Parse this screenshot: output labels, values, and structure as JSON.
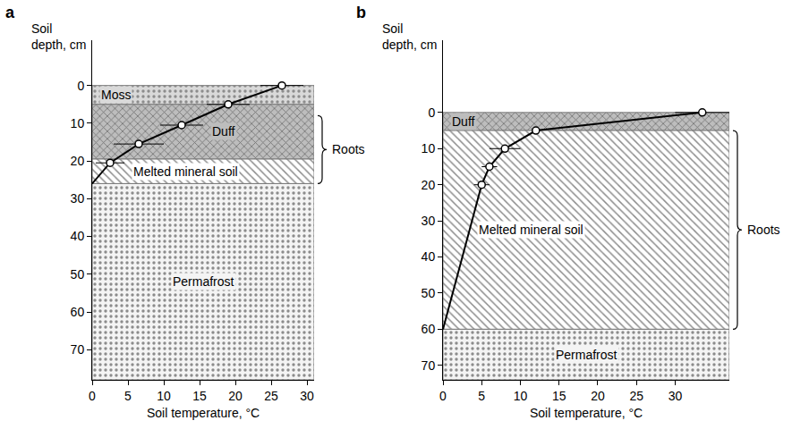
{
  "chart_data": [
    {
      "type": "line",
      "title": "a",
      "x_label": "Soil temperature, °C",
      "y_label": "Soil depth, cm",
      "xlim": [
        0,
        31
      ],
      "xticks": [
        0,
        5,
        10,
        15,
        20,
        25,
        30
      ],
      "ylim": [
        78,
        -12
      ],
      "yticks": [
        0,
        10,
        20,
        30,
        40,
        50,
        60,
        70
      ],
      "grid": false,
      "layers": [
        {
          "label": "Moss",
          "top": 0,
          "bottom": 5,
          "color": "#d9d9d9",
          "marker": "dots"
        },
        {
          "label": "Duff",
          "top": 5,
          "bottom": 19.5,
          "color": "#bdbdbd",
          "marker": "crosshatch"
        },
        {
          "label": "Melted mineral soil",
          "top": 19.5,
          "bottom": 26,
          "color": "#ffffff",
          "marker": "hatch"
        },
        {
          "label": "Permafrost",
          "top": 26,
          "bottom": 78,
          "color": "#f4f4f4",
          "marker": "dots"
        }
      ],
      "series": [
        {
          "type": "line",
          "color": "#000000",
          "x": [
            26.5,
            19,
            12.5,
            6.5,
            2.5,
            0
          ],
          "values": [
            0,
            5,
            10.5,
            15.5,
            20.5,
            26
          ]
        },
        {
          "type": "scatter",
          "marker": "open-circle",
          "color": "#000000",
          "x": [
            26.5,
            19,
            12.5,
            6.5,
            2.5
          ],
          "values": [
            0,
            5,
            10.5,
            15.5,
            20.5
          ],
          "error": [
            3,
            3,
            3,
            3.5,
            2
          ]
        }
      ],
      "brackets": [
        {
          "label": "Roots",
          "top": 8,
          "bottom": 26
        }
      ]
    },
    {
      "type": "line",
      "title": "b",
      "x_label": "Soil temperature, °C",
      "y_label": "Soil depth, cm",
      "xlim": [
        0,
        37
      ],
      "xticks": [
        0,
        5,
        10,
        15,
        20,
        25,
        30
      ],
      "ylim": [
        74,
        -20
      ],
      "yticks": [
        0,
        10,
        20,
        30,
        40,
        50,
        60,
        70
      ],
      "grid": false,
      "layers": [
        {
          "label": "Duff",
          "top": 0,
          "bottom": 5,
          "color": "#bdbdbd",
          "marker": "crosshatch"
        },
        {
          "label": "Melted mineral soil",
          "top": 5,
          "bottom": 60,
          "color": "#ffffff",
          "marker": "hatch"
        },
        {
          "label": "Permafrost",
          "top": 60,
          "bottom": 74,
          "color": "#f4f4f4",
          "marker": "dots"
        }
      ],
      "series": [
        {
          "type": "line",
          "color": "#000000",
          "x": [
            33.5,
            12,
            8,
            6,
            5,
            0
          ],
          "values": [
            0,
            5,
            10,
            15,
            20,
            60
          ]
        },
        {
          "type": "scatter",
          "marker": "open-circle",
          "color": "#000000",
          "x": [
            33.5,
            12,
            8,
            6,
            5
          ],
          "values": [
            0,
            5,
            10,
            15,
            20
          ],
          "error": [
            3.5,
            0,
            2,
            1,
            1
          ]
        }
      ],
      "brackets": [
        {
          "label": "Roots",
          "top": 5,
          "bottom": 60
        }
      ]
    }
  ]
}
